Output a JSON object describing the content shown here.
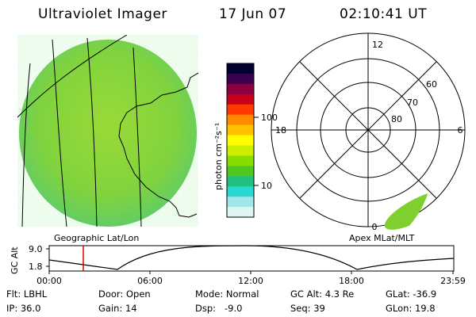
{
  "header": {
    "title": "Ultraviolet Imager",
    "date": "17 Jun 07",
    "time": "02:10:41 UT"
  },
  "left_panel": {
    "label": "Geographic Lat/Lon"
  },
  "right_panel": {
    "label": "Apex MLat/MLT",
    "mlt_labels": {
      "top": "12",
      "left": "18",
      "right": "6",
      "bottom": "0"
    },
    "lat_labels": [
      "60",
      "70",
      "80"
    ]
  },
  "colorbar": {
    "unit": "photon cm⁻²s⁻¹",
    "ticks": [
      "100",
      "10"
    ],
    "scale": "log",
    "colors": [
      "#000030",
      "#3a0050",
      "#8a0040",
      "#c8001e",
      "#ff3a00",
      "#ff8a00",
      "#ffc000",
      "#ffff00",
      "#ccee00",
      "#88dd00",
      "#4ec81e",
      "#22c080",
      "#28d8d0",
      "#a0e8e8",
      "#e0f4f4"
    ]
  },
  "timeline": {
    "ylabel": "GC Alt",
    "yticks": [
      "9.0",
      "1.8"
    ],
    "xticks": [
      "00:00",
      "06:00",
      "12:00",
      "18:00",
      "23:59"
    ],
    "marker_time": "02:10"
  },
  "status": {
    "row1": {
      "flt": "Flt: LBHL",
      "door": "Door: Open",
      "mode": "Mode: Normal",
      "gcalt": "GC Alt: 4.3 Re",
      "glat": "GLat: -36.9"
    },
    "row2": {
      "ip": "IP: 36.0",
      "gain": "Gain: 14",
      "dsp": "Dsp:   -9.0",
      "seq": "Seq: 39",
      "glon": "GLon: 19.8"
    }
  }
}
